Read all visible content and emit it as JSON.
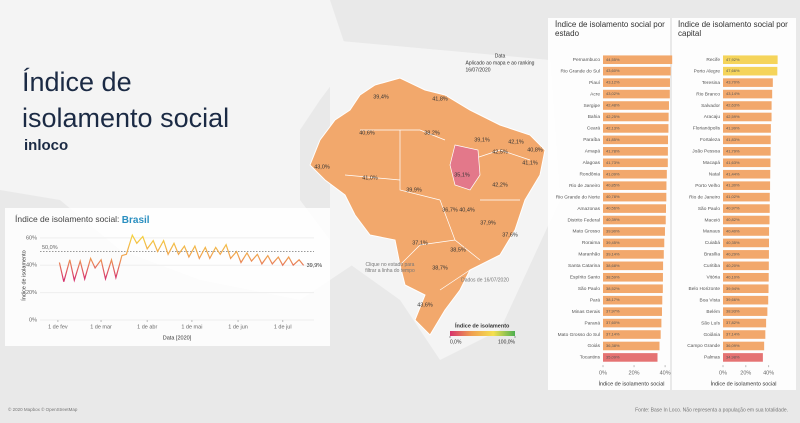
{
  "header": {
    "title": "Índice de isolamento social",
    "subtitle": "inloco",
    "note_date": "Data",
    "note_applied": "Aplicado ao mapa e ao ranking",
    "note_day": "16/07/2020",
    "click_hint": "Clique no estado para filtrar a linha do tempo",
    "data_date": "Dados de 16/07/2020",
    "copyright": "© 2020 Mapbox © OpenStreetMap",
    "source": "Fonte: Base In Loco. Não representa a população em sua totalidade."
  },
  "map": {
    "values": [
      39.4,
      41.8,
      40.6,
      38.2,
      39.1,
      42.1,
      40.8,
      43.0,
      41.0,
      39.9,
      35.1,
      36.7,
      40.4,
      42.2,
      37.9,
      37.1,
      38.5,
      37.6,
      38.7,
      43.6,
      41.1,
      42.5
    ],
    "value_labels": [
      "39,4%",
      "41,8%",
      "40,6%",
      "38,2%",
      "39,1%",
      "42,1%",
      "40,8%",
      "43,0%",
      "41,0%",
      "39,9%",
      "35,1%",
      "36,7%",
      "40,4%",
      "42,2%",
      "37,9%",
      "37,1%",
      "38,5%",
      "37,6%",
      "38,7%",
      "43,6%",
      "41,1%",
      "42,5%"
    ],
    "color": "#f2a86c",
    "highlight_color": "#e3788a",
    "legend": {
      "title": "Índice de isolamento",
      "colors": [
        "#d6336c",
        "#f0a050",
        "#f5e050",
        "#4caf50"
      ],
      "ticks": [
        {
          "value": 0,
          "label": "0,0%"
        },
        {
          "value": 100,
          "label": "100,0%"
        }
      ]
    }
  },
  "chart_data": [
    {
      "type": "line",
      "title": "Índice de isolamento social: ",
      "title_highlight": "Brasil",
      "y_label": "Índice de isolamento",
      "x_label": "Data [2020]",
      "x": [
        "2020-02-02",
        "2020-02-05",
        "2020-02-09",
        "2020-02-12",
        "2020-02-16",
        "2020-02-19",
        "2020-02-23",
        "2020-02-26",
        "2020-03-01",
        "2020-03-04",
        "2020-03-08",
        "2020-03-11",
        "2020-03-15",
        "2020-03-18",
        "2020-03-22",
        "2020-03-25",
        "2020-03-29",
        "2020-04-01",
        "2020-04-05",
        "2020-04-08",
        "2020-04-12",
        "2020-04-15",
        "2020-04-19",
        "2020-04-22",
        "2020-04-26",
        "2020-04-29",
        "2020-05-03",
        "2020-05-06",
        "2020-05-10",
        "2020-05-13",
        "2020-05-17",
        "2020-05-20",
        "2020-05-24",
        "2020-05-27",
        "2020-05-31",
        "2020-06-03",
        "2020-06-07",
        "2020-06-10",
        "2020-06-14",
        "2020-06-17",
        "2020-06-21",
        "2020-06-24",
        "2020-06-28",
        "2020-07-01",
        "2020-07-05",
        "2020-07-08",
        "2020-07-12",
        "2020-07-15"
      ],
      "values": [
        42,
        28,
        44,
        29,
        43,
        30,
        45,
        38,
        44,
        30,
        44,
        31,
        47,
        48,
        62,
        56,
        61,
        52,
        58,
        50,
        58,
        48,
        56,
        48,
        54,
        46,
        54,
        45,
        53,
        45,
        53,
        48,
        55,
        45,
        50,
        42,
        49,
        43,
        48,
        41,
        47,
        41,
        46,
        40,
        46,
        40,
        44,
        39.9
      ],
      "last_value_label": "39,9%",
      "colors": [
        "#f5d33f",
        "#f0a050",
        "#d6336c"
      ],
      "reference_line": {
        "value": 50,
        "label": "50,0%"
      },
      "xlim": [
        "2020-01-20",
        "2020-07-22"
      ],
      "xticks": [
        {
          "value": "2020-02-01",
          "label": "1 de fev"
        },
        {
          "value": "2020-03-01",
          "label": "1 de mar"
        },
        {
          "value": "2020-04-01",
          "label": "1 de abr"
        },
        {
          "value": "2020-05-01",
          "label": "1 de mai"
        },
        {
          "value": "2020-06-01",
          "label": "1 de jun"
        },
        {
          "value": "2020-07-01",
          "label": "1 de jul"
        }
      ],
      "ylim": [
        0,
        65
      ],
      "yticks": [
        {
          "value": 0,
          "label": "0%"
        },
        {
          "value": 20,
          "label": "20%"
        },
        {
          "value": 40,
          "label": "40%"
        },
        {
          "value": 60,
          "label": "60%"
        }
      ],
      "grid": true
    },
    {
      "type": "barh",
      "title": "Índice de isolamento social por estado",
      "x_label": "Índice de isolamento social",
      "categories": [
        "Pernambuco",
        "Rio Grande do Sul",
        "Piauí",
        "Acre",
        "Sergipe",
        "Bahia",
        "Ceará",
        "Paraíba",
        "Amapá",
        "Alagoas",
        "Rondônia",
        "Rio de Janeiro",
        "Rio Grande do Norte",
        "Amazonas",
        "Distrito Federal",
        "Mato Grosso",
        "Roraima",
        "Maranhão",
        "Santa Catarina",
        "Espírito Santo",
        "São Paulo",
        "Pará",
        "Minas Gerais",
        "Paraná",
        "Mato Grosso do Sul",
        "Goiás",
        "Tocantins"
      ],
      "values": [
        44.55,
        43.6,
        43.12,
        43.02,
        42.48,
        42.25,
        42.13,
        41.85,
        41.78,
        41.73,
        41.09,
        40.85,
        40.78,
        40.56,
        40.39,
        39.9,
        39.45,
        39.14,
        38.68,
        38.59,
        38.52,
        38.17,
        37.97,
        37.6,
        37.14,
        36.38,
        35.09
      ],
      "value_labels": [
        "44,55%",
        "43,60%",
        "43,12%",
        "43,02%",
        "42,48%",
        "42,25%",
        "42,13%",
        "41,85%",
        "41,78%",
        "41,73%",
        "41,09%",
        "40,85%",
        "40,78%",
        "40,56%",
        "40,39%",
        "39,90%",
        "39,45%",
        "39,14%",
        "38,68%",
        "38,59%",
        "38,52%",
        "38,17%",
        "37,97%",
        "37,60%",
        "37,14%",
        "36,38%",
        "35,09%"
      ],
      "colors": [
        "#f2a86c",
        "#f2a86c",
        "#f2a86c",
        "#f2a86c",
        "#f2a86c",
        "#f2a86c",
        "#f2a86c",
        "#f2a86c",
        "#f2a86c",
        "#f2a86c",
        "#f2a86c",
        "#f2a86c",
        "#f2a86c",
        "#f2a86c",
        "#f2a86c",
        "#f2a86c",
        "#f2a86c",
        "#f2a86c",
        "#f2a86c",
        "#f2a86c",
        "#f2a86c",
        "#f2a86c",
        "#f2a86c",
        "#f2a86c",
        "#f2a86c",
        "#f2a86c",
        "#e57373"
      ],
      "xlim": [
        0,
        47
      ],
      "xticks": [
        {
          "value": 0,
          "label": "0%"
        },
        {
          "value": 20,
          "label": "20%"
        },
        {
          "value": 40,
          "label": "40%"
        }
      ]
    },
    {
      "type": "barh",
      "title": "Índice de isolamento social por capital",
      "x_label": "Índice de isolamento social",
      "categories": [
        "Recife",
        "Porto Alegre",
        "Teresina",
        "Rio Branco",
        "Salvador",
        "Aracaju",
        "Florianópolis",
        "Fortaleza",
        "João Pessoa",
        "Macapá",
        "Natal",
        "Porto Velho",
        "Rio de Janeiro",
        "São Paulo",
        "Maceió",
        "Manaus",
        "Cuiabá",
        "Brasília",
        "Curitiba",
        "Vitória",
        "Belo Horizonte",
        "Boa Vista",
        "Belém",
        "São Luís",
        "Goiânia",
        "Campo Grande",
        "Palmas"
      ],
      "values": [
        47.92,
        47.66,
        43.7,
        43.14,
        42.63,
        42.59,
        41.99,
        41.83,
        41.79,
        41.63,
        41.44,
        41.3,
        41.02,
        40.97,
        40.82,
        40.4,
        40.35,
        40.29,
        40.2,
        40.1,
        39.94,
        39.66,
        38.93,
        37.82,
        37.14,
        36.09,
        34.98
      ],
      "value_labels": [
        "47,92%",
        "47,66%",
        "43,70%",
        "43,14%",
        "42,63%",
        "42,59%",
        "41,99%",
        "41,83%",
        "41,79%",
        "41,63%",
        "41,44%",
        "41,30%",
        "41,02%",
        "40,97%",
        "40,82%",
        "40,40%",
        "40,35%",
        "40,29%",
        "40,20%",
        "40,10%",
        "39,94%",
        "39,66%",
        "38,93%",
        "37,82%",
        "37,14%",
        "36,09%",
        "34,98%"
      ],
      "colors": [
        "#f5d45a",
        "#f5d45a",
        "#f2a86c",
        "#f2a86c",
        "#f2a86c",
        "#f2a86c",
        "#f2a86c",
        "#f2a86c",
        "#f2a86c",
        "#f2a86c",
        "#f2a86c",
        "#f2a86c",
        "#f2a86c",
        "#f2a86c",
        "#f2a86c",
        "#f2a86c",
        "#f2a86c",
        "#f2a86c",
        "#f2a86c",
        "#f2a86c",
        "#f2a86c",
        "#f2a86c",
        "#f2a86c",
        "#f2a86c",
        "#f2a86c",
        "#f2a86c",
        "#e57373"
      ],
      "xlim": [
        0,
        50
      ],
      "xticks": [
        {
          "value": 0,
          "label": "0%"
        },
        {
          "value": 20,
          "label": "20%"
        },
        {
          "value": 40,
          "label": "40%"
        }
      ]
    }
  ]
}
